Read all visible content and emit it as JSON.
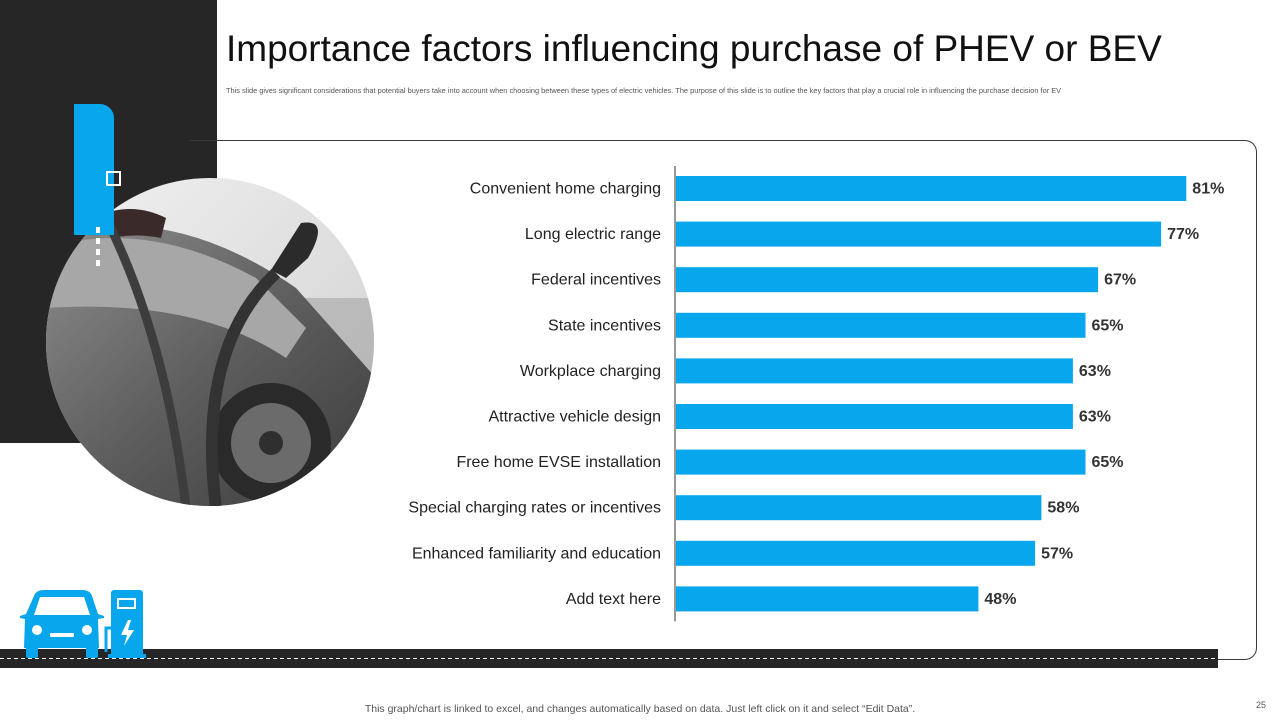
{
  "slide": {
    "title": "Importance factors influencing purchase of PHEV or BEV",
    "subtitle": "This slide gives significant considerations that potential buyers take into account when choosing between these types of electric vehicles. The purpose of this slide is to outline the key factors that play a crucial role in influencing the purchase decision for EV",
    "footnote": "This graph/chart is linked to excel,  and changes automatically based on data. Just left click on it and select “Edit Data”.",
    "page_number": "25"
  },
  "colors": {
    "accent": "#08a6ec",
    "dark": "#262626",
    "bar": "#08a6ec"
  },
  "icons": {
    "photo": "ev-charging-photo",
    "car": "car-icon",
    "charger": "charging-station-icon"
  },
  "chart_data": {
    "type": "bar",
    "orientation": "horizontal",
    "categories": [
      "Convenient home charging",
      "Long electric range",
      "Federal incentives",
      "State incentives",
      "Workplace charging",
      "Attractive vehicle design",
      "Free home EVSE installation",
      "Special charging rates or incentives",
      "Enhanced familiarity and education",
      "Add text here"
    ],
    "values": [
      81,
      77,
      67,
      65,
      63,
      63,
      65,
      58,
      57,
      48
    ],
    "value_labels": [
      "81%",
      "77%",
      "67%",
      "65%",
      "63%",
      "63%",
      "65%",
      "58%",
      "57%",
      "48%"
    ],
    "title": "",
    "xlabel": "",
    "ylabel": "",
    "xlim": [
      0,
      100
    ],
    "grid": false,
    "legend": "none"
  }
}
